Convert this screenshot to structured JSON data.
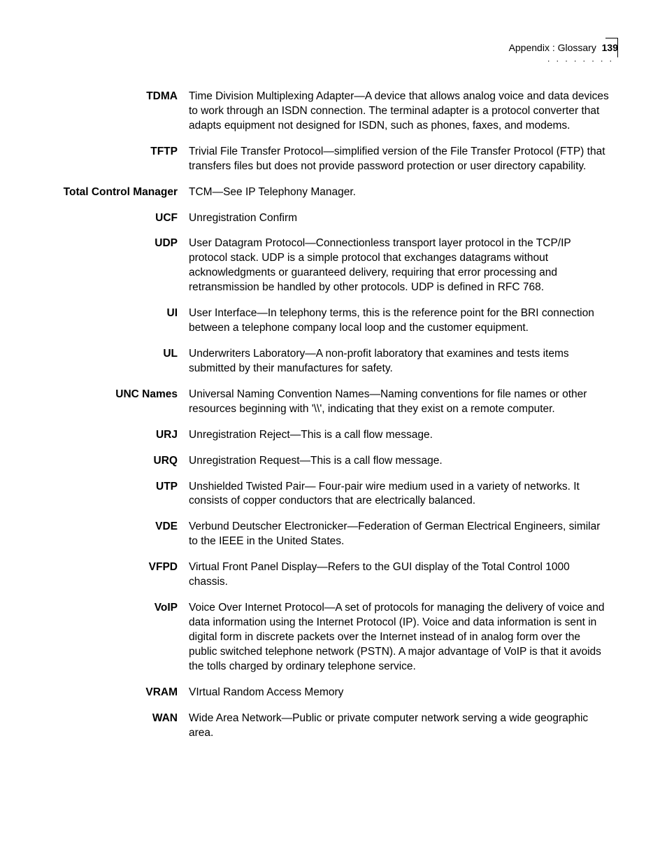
{
  "header": {
    "section": "Appendix : Glossary",
    "page": "139"
  },
  "entries": [
    {
      "term": "TDMA",
      "definition": "Time Division Multiplexing Adapter—A device that allows analog voice and data devices to work through an ISDN connection. The terminal adapter is a protocol converter that adapts equipment not designed for ISDN, such as phones, faxes, and modems."
    },
    {
      "term": "TFTP",
      "definition": "Trivial File Transfer Protocol—simplified version of the File Transfer Protocol (FTP) that transfers files but does not provide password protection or user directory capability."
    },
    {
      "term": "Total Control Manager",
      "definition": "TCM—See IP Telephony Manager."
    },
    {
      "term": "UCF",
      "definition": "Unregistration Confirm"
    },
    {
      "term": "UDP",
      "definition": "User Datagram Protocol—Connectionless transport layer protocol in the TCP/IP protocol stack. UDP is a simple protocol that exchanges datagrams without acknowledgments or guaranteed delivery, requiring that error processing and retransmission be handled by other protocols. UDP is defined in RFC 768."
    },
    {
      "term": "UI",
      "definition": "User Interface—In telephony terms, this is the reference point for the BRI connection between a telephone company local loop and the customer equipment."
    },
    {
      "term": "UL",
      "definition": "Underwriters Laboratory—A non-profit laboratory that examines and tests items submitted by their manufactures for safety."
    },
    {
      "term": "UNC Names",
      "definition": "Universal Naming Convention Names—Naming conventions for file names or other resources beginning with '\\\\', indicating that they exist on a remote computer."
    },
    {
      "term": "URJ",
      "definition": "Unregistration Reject—This is a call flow message."
    },
    {
      "term": "URQ",
      "definition": "Unregistration Request—This is a call flow message."
    },
    {
      "term": "UTP",
      "definition": "Unshielded Twisted Pair— Four-pair wire medium used in a variety of networks. It consists of copper conductors that are electrically balanced."
    },
    {
      "term": "VDE",
      "definition": "Verbund Deutscher Electronicker—Federation of German Electrical Engineers, similar to the IEEE in the United States."
    },
    {
      "term": "VFPD",
      "definition": "Virtual Front Panel Display—Refers to the GUI display of the Total Control 1000 chassis."
    },
    {
      "term": "VoIP",
      "definition": "Voice Over Internet Protocol—A set of protocols for managing the delivery of voice and data information using the Internet Protocol (IP). Voice and data information is sent in digital form in discrete packets over the Internet instead of in analog form over the public switched telephone network (PSTN). A major advantage of VoIP is that it avoids the tolls charged by ordinary telephone service."
    },
    {
      "term": "VRAM",
      "definition": "VIrtual Random Access Memory"
    },
    {
      "term": "WAN",
      "definition": "Wide Area Network—Public or private computer network serving a wide geographic area."
    }
  ]
}
